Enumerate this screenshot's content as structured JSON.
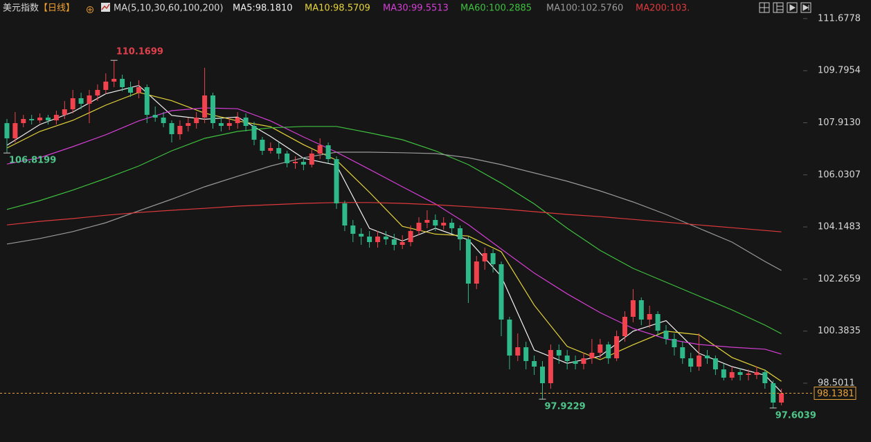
{
  "chart_data": {
    "type": "candlestick",
    "title": "美元指数",
    "subtitle": "【日线】",
    "indicator": "MA(5,10,30,60,100,200)",
    "ylim": [
      97.35,
      111.9
    ],
    "yticks": [
      111.6778,
      109.7954,
      {
        "value": 107.913,
        "label": "107.9130"
      },
      106.0307,
      104.1483,
      102.2659,
      100.3835,
      98.5011
    ],
    "up_color": "#f0434d",
    "down_color": "#2fb88a",
    "last_price_color": "#e8a33c",
    "open": [
      107.9,
      107.35,
      107.9,
      108.05,
      108.0,
      108.1,
      108.0,
      108.2,
      108.4,
      108.8,
      108.6,
      108.9,
      109.1,
      109.4,
      109.5,
      109.2,
      109.0,
      109.2,
      108.2,
      108.1,
      107.9,
      107.5,
      107.8,
      107.9,
      108.1,
      108.9,
      107.9,
      107.8,
      107.9,
      108.1,
      107.8,
      107.3,
      106.9,
      107.0,
      106.8,
      106.45,
      106.5,
      106.4,
      106.8,
      107.1,
      106.6,
      105.0,
      104.2,
      103.9,
      103.8,
      103.6,
      103.8,
      103.7,
      103.5,
      103.6,
      104.0,
      104.3,
      104.4,
      104.2,
      104.3,
      104.1,
      103.7,
      102.1,
      102.9,
      103.2,
      102.8,
      100.8,
      99.5,
      99.8,
      99.3,
      99.1,
      98.5,
      99.7,
      99.5,
      99.3,
      99.2,
      99.4,
      99.6,
      99.9,
      99.4,
      100.2,
      100.9,
      101.5,
      100.8,
      101.0,
      100.4,
      100.1,
      99.8,
      99.4,
      99.1,
      99.5,
      99.4,
      99.0,
      98.7,
      98.9,
      98.8,
      98.8,
      98.9,
      98.5,
      97.8
    ],
    "high": [
      108.05,
      108.3,
      108.2,
      108.2,
      108.25,
      108.2,
      108.35,
      108.7,
      109.1,
      109.0,
      109.1,
      109.3,
      109.7,
      110.1699,
      109.65,
      109.4,
      109.45,
      109.3,
      108.5,
      108.3,
      108.0,
      108.0,
      108.1,
      108.3,
      109.9,
      109.0,
      108.1,
      108.1,
      108.3,
      108.25,
      107.95,
      107.4,
      107.2,
      107.2,
      106.9,
      106.7,
      106.65,
      106.95,
      107.35,
      107.2,
      106.7,
      105.1,
      104.4,
      104.1,
      104.0,
      104.0,
      104.0,
      103.9,
      103.85,
      104.2,
      104.5,
      104.75,
      104.6,
      104.5,
      104.45,
      104.2,
      103.8,
      103.1,
      103.4,
      103.35,
      102.9,
      100.9,
      100.3,
      100.0,
      99.5,
      99.3,
      99.9,
      99.9,
      99.7,
      99.5,
      99.6,
      100.1,
      100.1,
      100.0,
      100.4,
      101.1,
      101.9,
      101.6,
      101.3,
      101.1,
      100.6,
      100.3,
      100.0,
      99.6,
      100.3,
      99.7,
      99.5,
      99.2,
      99.1,
      99.05,
      99.0,
      99.1,
      99.0,
      98.6,
      98.3
    ],
    "low": [
      106.8199,
      107.2,
      107.75,
      107.85,
      107.9,
      107.85,
      107.85,
      108.05,
      108.25,
      108.4,
      107.9,
      108.7,
      108.95,
      109.2,
      109.05,
      108.85,
      108.8,
      107.9,
      107.95,
      107.75,
      107.2,
      107.3,
      107.6,
      107.7,
      107.9,
      107.7,
      107.6,
      107.65,
      107.7,
      107.6,
      107.1,
      106.75,
      106.8,
      106.6,
      106.3,
      106.25,
      106.2,
      106.3,
      106.6,
      106.45,
      104.8,
      104.0,
      103.6,
      103.5,
      103.4,
      103.4,
      103.5,
      103.3,
      103.35,
      103.45,
      103.85,
      104.1,
      104.0,
      104.05,
      103.9,
      103.3,
      101.4,
      101.9,
      102.6,
      102.5,
      100.2,
      99.0,
      99.3,
      99.0,
      98.8,
      97.9229,
      98.3,
      99.2,
      99.0,
      99.0,
      99.0,
      99.2,
      99.4,
      99.2,
      99.3,
      100.0,
      100.7,
      100.6,
      100.5,
      100.2,
      99.9,
      99.5,
      99.2,
      98.9,
      98.95,
      99.2,
      98.8,
      98.6,
      98.6,
      98.6,
      98.6,
      98.65,
      98.3,
      97.6039,
      97.7
    ],
    "close": [
      107.35,
      107.9,
      108.05,
      108.0,
      108.1,
      108.0,
      108.2,
      108.4,
      108.8,
      108.6,
      108.9,
      109.1,
      109.4,
      109.5,
      109.2,
      109.0,
      109.2,
      108.2,
      108.1,
      107.9,
      107.5,
      107.8,
      107.9,
      108.1,
      108.9,
      107.9,
      107.8,
      107.9,
      108.1,
      107.8,
      107.3,
      106.9,
      107.0,
      106.8,
      106.45,
      106.5,
      106.4,
      106.8,
      107.1,
      106.6,
      105.0,
      104.2,
      103.9,
      103.8,
      103.6,
      103.8,
      103.7,
      103.5,
      103.6,
      104.0,
      104.3,
      104.4,
      104.2,
      104.3,
      104.1,
      103.7,
      102.1,
      102.9,
      103.2,
      102.8,
      100.8,
      99.5,
      99.8,
      99.3,
      99.1,
      98.5,
      99.7,
      99.5,
      99.3,
      99.2,
      99.4,
      99.6,
      99.9,
      99.4,
      100.2,
      100.9,
      101.5,
      100.8,
      101.0,
      100.4,
      100.1,
      99.8,
      99.4,
      99.1,
      99.5,
      99.4,
      99.0,
      98.7,
      98.9,
      98.8,
      98.85,
      98.9,
      98.5,
      97.8,
      98.1381
    ],
    "ma_x": [
      0,
      4,
      8,
      12,
      16,
      20,
      24,
      28,
      32,
      36,
      40,
      44,
      48,
      52,
      56,
      60,
      64,
      68,
      72,
      76,
      80,
      84,
      88,
      92,
      94
    ],
    "series": [
      {
        "name": "MA5:98.1810",
        "color": "#f2f2f2",
        "values": [
          107.1,
          107.85,
          108.3,
          108.96,
          109.26,
          108.18,
          108.04,
          108.12,
          107.42,
          106.63,
          106.38,
          104.1,
          103.64,
          104.1,
          103.68,
          102.36,
          99.7,
          99.22,
          99.48,
          100.38,
          100.76,
          99.58,
          99.1,
          98.79,
          98.181
        ]
      },
      {
        "name": "MA10:98.5709",
        "color": "#e6d53a",
        "values": [
          107.0,
          107.6,
          108.0,
          108.55,
          109.01,
          108.71,
          108.26,
          107.98,
          107.77,
          107.12,
          106.56,
          105.4,
          104.17,
          103.89,
          103.82,
          103.25,
          101.32,
          99.83,
          99.35,
          99.89,
          100.38,
          100.25,
          99.43,
          98.97,
          98.5709
        ]
      },
      {
        "name": "MA30:99.5513",
        "color": "#d63fd6",
        "values": [
          106.42,
          106.65,
          107.05,
          107.48,
          107.98,
          108.35,
          108.45,
          108.42,
          107.98,
          107.4,
          106.85,
          106.23,
          105.6,
          104.98,
          104.23,
          103.35,
          102.48,
          101.73,
          101.05,
          100.48,
          100.1,
          99.9,
          99.8,
          99.73,
          99.5513
        ]
      },
      {
        "name": "MA60:100.2885",
        "color": "#3ec13e",
        "values": [
          104.78,
          105.1,
          105.48,
          105.9,
          106.35,
          106.9,
          107.35,
          107.6,
          107.73,
          107.78,
          107.78,
          107.55,
          107.3,
          106.9,
          106.4,
          105.73,
          104.98,
          104.1,
          103.3,
          102.65,
          102.15,
          101.65,
          101.15,
          100.6,
          100.2885
        ]
      },
      {
        "name": "MA100:102.5760",
        "color": "#9a9a9a",
        "values": [
          103.53,
          103.73,
          103.98,
          104.3,
          104.73,
          105.15,
          105.6,
          105.98,
          106.35,
          106.65,
          106.85,
          106.85,
          106.83,
          106.8,
          106.65,
          106.4,
          106.1,
          105.8,
          105.45,
          105.05,
          104.6,
          104.1,
          103.6,
          102.9,
          102.576
        ]
      },
      {
        "name": "MA200:103.",
        "color": "#e0393c",
        "values": [
          104.22,
          104.35,
          104.45,
          104.57,
          104.67,
          104.75,
          104.82,
          104.9,
          104.95,
          105.0,
          105.03,
          105.03,
          105.0,
          104.95,
          104.88,
          104.8,
          104.7,
          104.6,
          104.52,
          104.42,
          104.32,
          104.22,
          104.12,
          104.02,
          103.97
        ]
      }
    ]
  }
}
